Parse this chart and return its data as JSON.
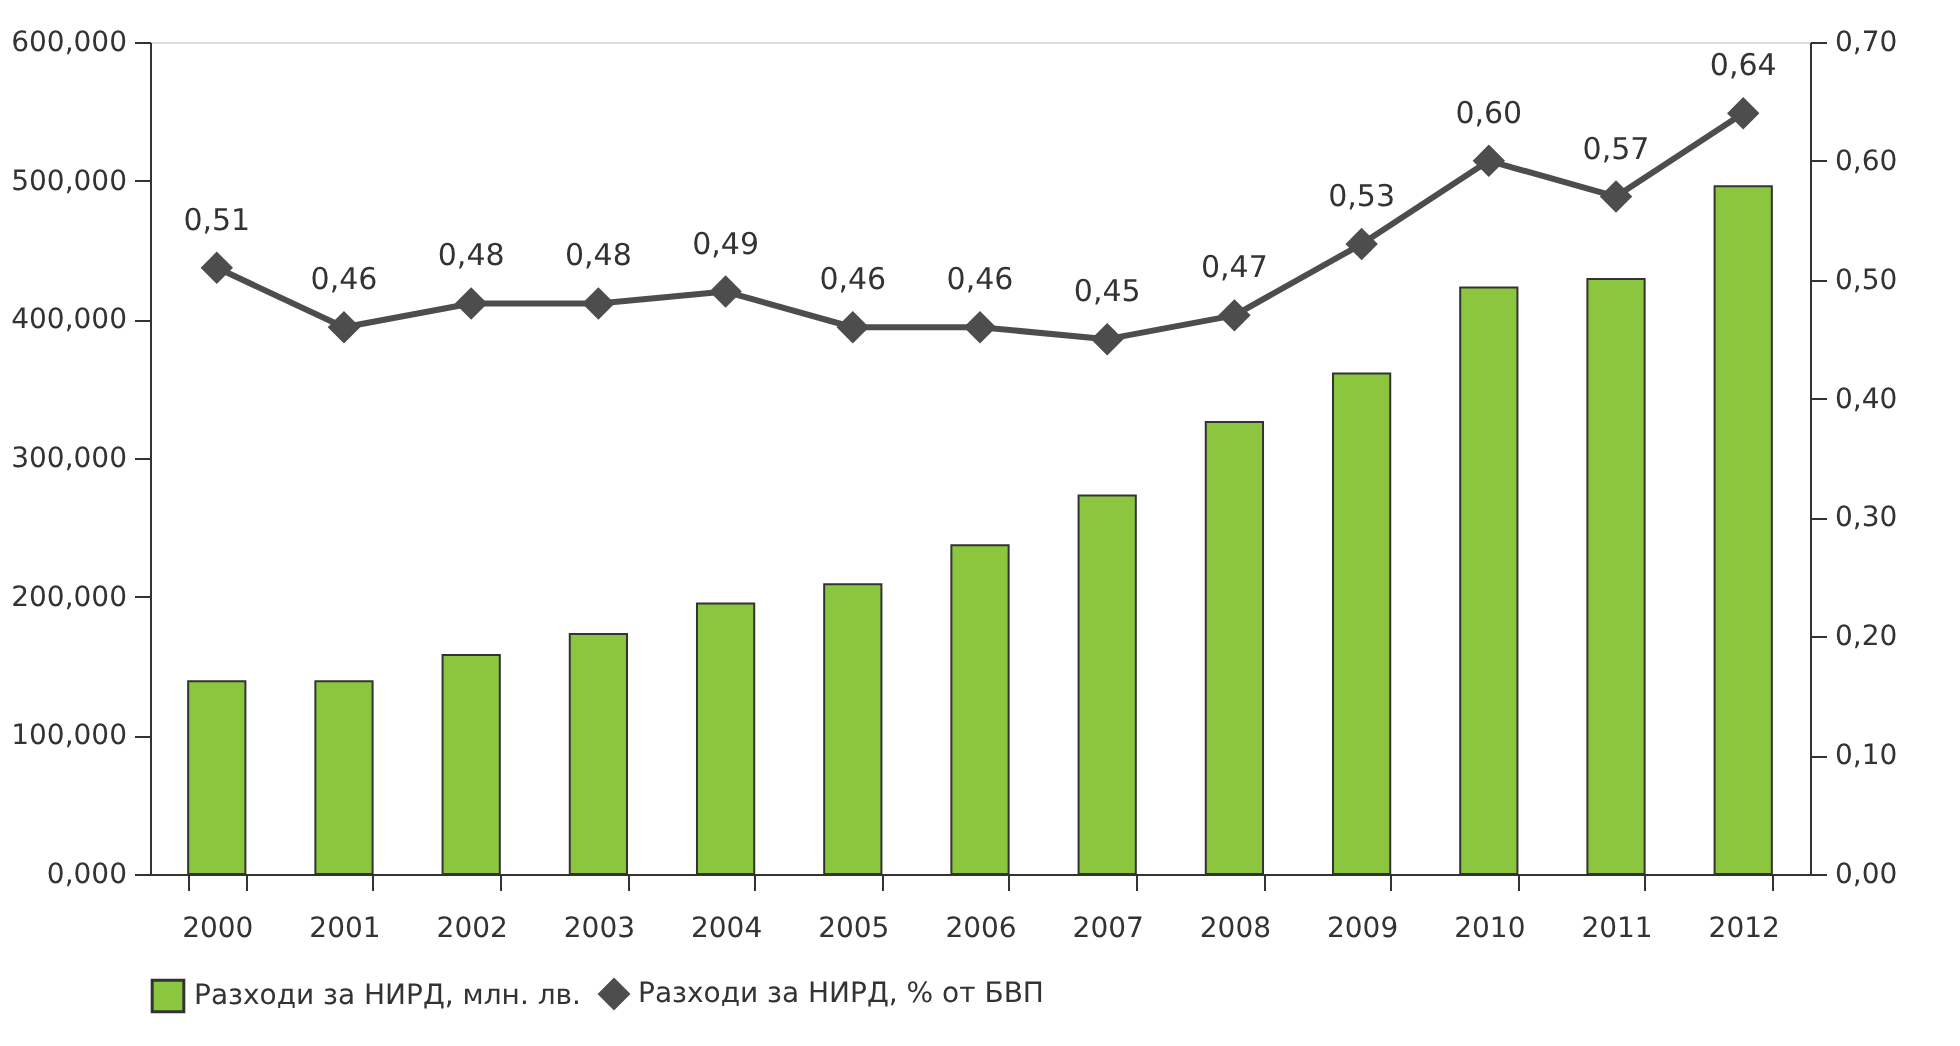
{
  "chart_data": {
    "type": "bar",
    "categories": [
      "2000",
      "2001",
      "2002",
      "2003",
      "2004",
      "2005",
      "2006",
      "2007",
      "2008",
      "2009",
      "2010",
      "2011",
      "2012"
    ],
    "series": [
      {
        "name": "Разходи за НИРД, млн. лв.",
        "color": "#8cc63f",
        "values": [
          139,
          139,
          158,
          173,
          195,
          209,
          237,
          273,
          326,
          361,
          423,
          429,
          496
        ]
      },
      {
        "name": "Разходи за НИРД, % от БВП",
        "type": "line",
        "axis": "y2",
        "color": "#4d4d4d",
        "marker": "diamond",
        "values": [
          0.51,
          0.46,
          0.48,
          0.48,
          0.49,
          0.46,
          0.46,
          0.45,
          0.47,
          0.53,
          0.6,
          0.57,
          0.64
        ],
        "value_labels": [
          "0,51",
          "0,46",
          "0,48",
          "0,48",
          "0,49",
          "0,46",
          "0,46",
          "0,45",
          "0,47",
          "0,53",
          "0,60",
          "0,57",
          "0,64"
        ]
      }
    ],
    "ylim": [
      0,
      600
    ],
    "yticks": [
      {
        "value": 0,
        "label": "0,000"
      },
      {
        "value": 100,
        "label": "100,000"
      },
      {
        "value": 200,
        "label": "200,000"
      },
      {
        "value": 300,
        "label": "300,000"
      },
      {
        "value": 400,
        "label": "400,000"
      },
      {
        "value": 500,
        "label": "500,000"
      },
      {
        "value": 600,
        "label": "600,000"
      }
    ],
    "y2lim": [
      0,
      0.7
    ],
    "y2ticks": [
      {
        "value": 0,
        "label": "0,00"
      },
      {
        "value": 0.1,
        "label": "0,10"
      },
      {
        "value": 0.2,
        "label": "0,20"
      },
      {
        "value": 0.3,
        "label": "0,30"
      },
      {
        "value": 0.4,
        "label": "0,40"
      },
      {
        "value": 0.5,
        "label": "0,50"
      },
      {
        "value": 0.6,
        "label": "0,60"
      },
      {
        "value": 0.7,
        "label": "0,70"
      }
    ],
    "grid": false,
    "legend": "bottom"
  }
}
